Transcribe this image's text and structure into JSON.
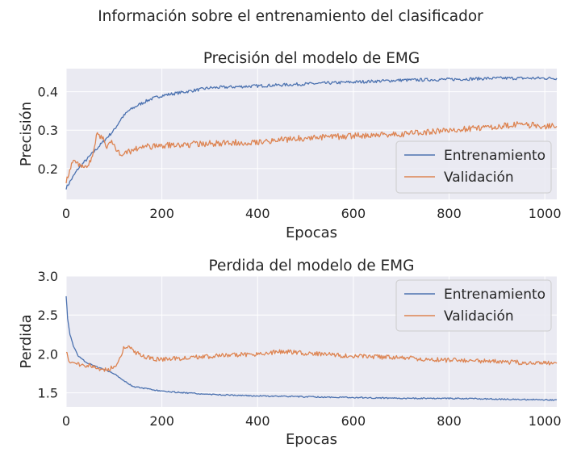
{
  "suptitle": "Información sobre el entrenamiento del clasificador",
  "colors": {
    "train": "#4c72b0",
    "val": "#dd8452",
    "bg": "#eaeaf2",
    "grid": "#ffffff"
  },
  "chart_data": [
    {
      "type": "line",
      "title": "Precisión del modelo de EMG",
      "xlabel": "Epocas",
      "ylabel": "Precisión",
      "xlim": [
        0,
        1025
      ],
      "ylim": [
        0.12,
        0.46
      ],
      "xticks": [
        0,
        200,
        400,
        600,
        800,
        1000
      ],
      "yticks": [
        0.2,
        0.3,
        0.4
      ],
      "ytick_labels": [
        "0.2",
        "0.3",
        "0.4"
      ],
      "grid": true,
      "legend": "lower-right",
      "series": [
        {
          "name": "Entrenamiento",
          "color": "#4c72b0",
          "x": [
            0,
            10,
            25,
            40,
            55,
            70,
            85,
            100,
            115,
            130,
            150,
            175,
            200,
            250,
            300,
            400,
            500,
            600,
            700,
            800,
            900,
            1000,
            1025
          ],
          "y": [
            0.15,
            0.17,
            0.2,
            0.22,
            0.24,
            0.26,
            0.28,
            0.3,
            0.33,
            0.35,
            0.365,
            0.38,
            0.39,
            0.4,
            0.41,
            0.415,
            0.42,
            0.425,
            0.43,
            0.432,
            0.435,
            0.435,
            0.435
          ]
        },
        {
          "name": "Validación",
          "color": "#dd8452",
          "x": [
            0,
            15,
            30,
            45,
            55,
            65,
            75,
            85,
            95,
            110,
            125,
            150,
            200,
            300,
            400,
            500,
            600,
            700,
            750,
            800,
            850,
            900,
            950,
            1000,
            1025
          ],
          "y": [
            0.17,
            0.22,
            0.21,
            0.2,
            0.24,
            0.29,
            0.28,
            0.26,
            0.27,
            0.24,
            0.24,
            0.255,
            0.26,
            0.265,
            0.27,
            0.28,
            0.285,
            0.29,
            0.295,
            0.3,
            0.305,
            0.31,
            0.315,
            0.31,
            0.31
          ]
        }
      ]
    },
    {
      "type": "line",
      "title": "Perdida del modelo de EMG",
      "xlabel": "Epocas",
      "ylabel": "Perdida",
      "xlim": [
        0,
        1025
      ],
      "ylim": [
        1.32,
        3.0
      ],
      "xticks": [
        0,
        200,
        400,
        600,
        800,
        1000
      ],
      "yticks": [
        1.5,
        2.0,
        2.5,
        3.0
      ],
      "ytick_labels": [
        "1.5",
        "2.0",
        "2.5",
        "3.0"
      ],
      "grid": true,
      "legend": "top-right",
      "series": [
        {
          "name": "Entrenamiento",
          "color": "#4c72b0",
          "x": [
            0,
            3,
            8,
            15,
            25,
            40,
            60,
            80,
            100,
            120,
            140,
            170,
            200,
            250,
            300,
            400,
            500,
            600,
            700,
            800,
            900,
            1000,
            1025
          ],
          "y": [
            2.75,
            2.45,
            2.25,
            2.1,
            1.98,
            1.9,
            1.84,
            1.8,
            1.75,
            1.66,
            1.58,
            1.55,
            1.52,
            1.5,
            1.48,
            1.46,
            1.45,
            1.44,
            1.43,
            1.43,
            1.42,
            1.41,
            1.41
          ]
        },
        {
          "name": "Validación",
          "color": "#dd8452",
          "x": [
            0,
            5,
            15,
            30,
            50,
            70,
            90,
            110,
            120,
            130,
            150,
            175,
            200,
            250,
            300,
            400,
            450,
            500,
            600,
            700,
            800,
            900,
            1000,
            1025
          ],
          "y": [
            2.05,
            1.92,
            1.88,
            1.87,
            1.85,
            1.8,
            1.8,
            1.9,
            2.08,
            2.1,
            2.0,
            1.94,
            1.93,
            1.95,
            1.97,
            2.0,
            2.03,
            2.01,
            1.97,
            1.95,
            1.92,
            1.9,
            1.88,
            1.88
          ]
        }
      ]
    }
  ]
}
